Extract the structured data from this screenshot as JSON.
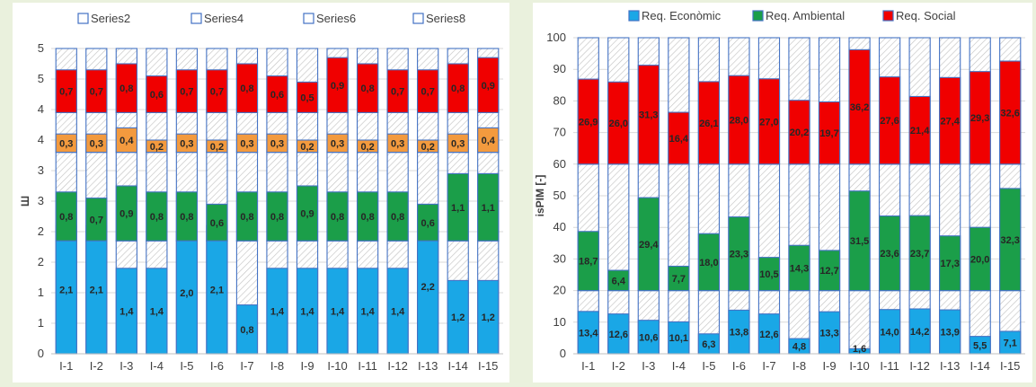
{
  "chart_data": [
    {
      "type": "bar",
      "stacked": true,
      "categories": [
        "I-1",
        "I-2",
        "I-3",
        "I-4",
        "I-5",
        "I-6",
        "I-7",
        "I-8",
        "I-9",
        "I-10",
        "I-11",
        "I-12",
        "I-13",
        "I-14",
        "I-15"
      ],
      "legend": [
        "Series2",
        "Series4",
        "Series6",
        "Series8"
      ],
      "legend_position": "top",
      "ylabel": "Ш",
      "yticks": [
        "0",
        "1",
        "1",
        "2",
        "2",
        "3",
        "3",
        "4",
        "4",
        "5",
        "5"
      ],
      "ylim": [
        0,
        5
      ],
      "grid": true,
      "series": [
        {
          "color": "#1aa7e6",
          "base": 0,
          "values": [
            2.1,
            2.1,
            1.4,
            1.4,
            2.0,
            2.1,
            0.8,
            1.4,
            1.4,
            1.4,
            1.4,
            1.4,
            2.2,
            1.2,
            1.2
          ],
          "labels": [
            "2,1",
            "2,1",
            "1,4",
            "1,4",
            "2,0",
            "2,1",
            "0,8",
            "1,4",
            "1,4",
            "1,4",
            "1,4",
            "1,4",
            "2,2",
            "1,2",
            "1,2"
          ]
        },
        {
          "color": "#1b9e49",
          "base": 1.85,
          "values": [
            0.8,
            0.7,
            0.9,
            0.8,
            0.8,
            0.6,
            0.8,
            0.8,
            0.9,
            0.8,
            0.8,
            0.8,
            0.6,
            1.1,
            1.1
          ],
          "labels": [
            "0,8",
            "0,7",
            "0,9",
            "0,8",
            "0,8",
            "0,6",
            "0,8",
            "0,8",
            "0,9",
            "0,8",
            "0,8",
            "0,8",
            "0,6",
            "1,1",
            "1,1"
          ]
        },
        {
          "color": "#f39a3e",
          "base": 3.3,
          "values": [
            0.3,
            0.3,
            0.4,
            0.2,
            0.3,
            0.2,
            0.3,
            0.3,
            0.2,
            0.3,
            0.2,
            0.3,
            0.2,
            0.3,
            0.4
          ],
          "labels": [
            "0,3",
            "0,3",
            "0,4",
            "0,2",
            "0,3",
            "0,2",
            "0,3",
            "0,3",
            "0,2",
            "0,3",
            "0,2",
            "0,3",
            "0,2",
            "0,3",
            "0,4"
          ]
        },
        {
          "color": "#f00000",
          "base": 3.95,
          "values": [
            0.7,
            0.7,
            0.8,
            0.6,
            0.7,
            0.7,
            0.8,
            0.6,
            0.5,
            0.9,
            0.8,
            0.7,
            0.7,
            0.8,
            0.9
          ],
          "labels": [
            "0,7",
            "0,7",
            "0,8",
            "0,6",
            "0,7",
            "0,7",
            "0,8",
            "0,6",
            "0,5",
            "0,9",
            "0,8",
            "0,7",
            "0,7",
            "0,8",
            "0,9"
          ]
        }
      ],
      "hatched_backgrounds": [
        [
          0,
          1.85
        ],
        [
          1.85,
          3.3
        ],
        [
          3.3,
          3.95
        ],
        [
          3.95,
          5.0
        ]
      ]
    },
    {
      "type": "bar",
      "stacked": true,
      "categories": [
        "I-1",
        "I-2",
        "I-3",
        "I-4",
        "I-5",
        "I-6",
        "I-7",
        "I-8",
        "I-9",
        "I-10",
        "I-11",
        "I-12",
        "I-13",
        "I-14",
        "I-15"
      ],
      "legend": [
        "Req. Econòmic",
        "Req. Ambiental",
        "Req. Social"
      ],
      "legend_position": "top",
      "ylabel": "isPIM [-]",
      "yticks": [
        "0",
        "10",
        "20",
        "30",
        "40",
        "50",
        "60",
        "70",
        "80",
        "90",
        "100"
      ],
      "ylim": [
        0,
        100
      ],
      "grid": true,
      "series": [
        {
          "name": "Req. Econòmic",
          "color": "#1aa7e6",
          "base": 0,
          "values": [
            13.4,
            12.6,
            10.6,
            10.1,
            6.3,
            13.8,
            12.6,
            4.8,
            13.3,
            1.6,
            14.0,
            14.2,
            13.9,
            5.5,
            7.1
          ],
          "labels": [
            "13,4",
            "12,6",
            "10,6",
            "10,1",
            "6,3",
            "13,8",
            "12,6",
            "4,8",
            "13,3",
            "1,6",
            "14,0",
            "14,2",
            "13,9",
            "5,5",
            "7,1"
          ]
        },
        {
          "name": "Req. Ambiental",
          "color": "#1b9e49",
          "base": 20,
          "values": [
            18.7,
            6.4,
            29.4,
            7.7,
            18.0,
            23.3,
            10.5,
            14.3,
            12.7,
            31.5,
            23.6,
            23.7,
            17.3,
            20.0,
            32.3
          ],
          "labels": [
            "18,7",
            "6,4",
            "29,4",
            "7,7",
            "18,0",
            "23,3",
            "10,5",
            "14,3",
            "12,7",
            "31,5",
            "23,6",
            "23,7",
            "17,3",
            "20,0",
            "32,3"
          ]
        },
        {
          "name": "Req. Social",
          "color": "#f00000",
          "base": 60,
          "values": [
            26.9,
            26.0,
            31.3,
            16.4,
            26.1,
            28.0,
            27.0,
            20.2,
            19.7,
            36.2,
            27.6,
            21.4,
            27.4,
            29.3,
            32.6
          ],
          "labels": [
            "26,9",
            "26,0",
            "31,3",
            "16,4",
            "26,1",
            "28,0",
            "27,0",
            "20,2",
            "19,7",
            "36,2",
            "27,6",
            "21,4",
            "27,4",
            "29,3",
            "32,6"
          ]
        }
      ],
      "hatched_backgrounds": [
        [
          0,
          20
        ],
        [
          20,
          60
        ],
        [
          60,
          100
        ]
      ]
    }
  ]
}
